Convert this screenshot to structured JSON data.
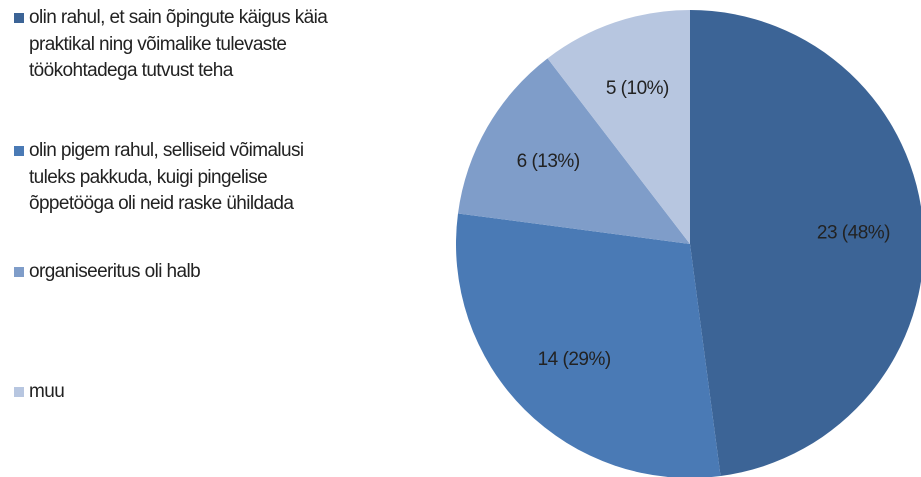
{
  "chart_data": {
    "type": "pie",
    "categories": [
      "olin rahul, et sain õpingute käigus käia praktikal ning võimalike tulevaste töökohtadega tutvust teha",
      "olin pigem rahul, selliseid võimalusi tuleks pakkuda, kuigi pingelise õppetööga oli neid raske ühildada",
      "organiseeritus oli halb",
      "muu"
    ],
    "values": [
      23,
      14,
      6,
      5
    ],
    "value_labels": [
      "23 (48%)",
      "14 (29%)",
      "6 (13%)",
      "5 (10%)"
    ],
    "colors": [
      "#3c6496",
      "#4a7ab5",
      "#7f9dc9",
      "#b7c6e0"
    ],
    "legend": "left"
  }
}
